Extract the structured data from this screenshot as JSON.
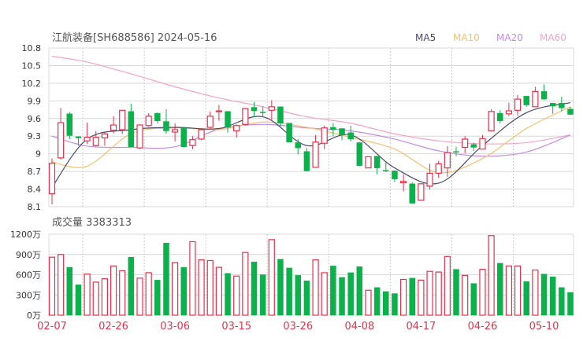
{
  "header": {
    "title": "江航装备[SH688586] 2024-05-16"
  },
  "legend": [
    {
      "label": "MA5",
      "color": "#4b4a6b"
    },
    {
      "label": "MA10",
      "color": "#f7c06a"
    },
    {
      "label": "MA20",
      "color": "#c38ce6"
    },
    {
      "label": "MA60",
      "color": "#f6a3c9"
    }
  ],
  "volume_header": {
    "label": "成交量 3383313"
  },
  "colors": {
    "up": "#e8304a",
    "down": "#0cb14b",
    "grid": "#d8d8d8",
    "axis_text": "#333333",
    "date_text": "#e8304a"
  },
  "chart_data": [
    {
      "type": "candlestick",
      "title": "江航装备[SH688586] 2024-05-16",
      "ylim": [
        8.1,
        10.8
      ],
      "yticks": [
        "10.8",
        "10.5",
        "10.2",
        "9.9",
        "9.6",
        "9.3",
        "9",
        "8.7",
        "8.4",
        "8.1"
      ],
      "open": [
        8.32,
        8.93,
        9.68,
        9.29,
        9.22,
        9.14,
        9.27,
        9.4,
        9.41,
        9.72,
        9.1,
        9.48,
        9.69,
        9.55,
        9.37,
        9.44,
        9.14,
        9.25,
        9.45,
        9.72,
        9.72,
        9.39,
        9.5,
        9.79,
        9.71,
        9.74,
        9.8,
        9.52,
        9.19,
        9.04,
        8.77,
        9.18,
        9.45,
        9.43,
        9.36,
        9.19,
        8.76,
        8.96,
        8.72,
        8.71,
        8.51,
        8.49,
        8.21,
        8.45,
        8.67,
        8.76,
        9.04,
        9.11,
        9.16,
        9.08,
        9.39,
        9.69,
        9.68,
        9.74,
        9.98,
        9.8,
        10.06,
        9.86,
        9.86,
        9.76
      ],
      "high": [
        8.92,
        9.78,
        9.71,
        9.3,
        9.53,
        9.39,
        9.36,
        9.64,
        9.74,
        9.85,
        9.5,
        9.69,
        9.7,
        9.76,
        9.52,
        9.45,
        9.3,
        9.42,
        9.72,
        9.83,
        9.73,
        9.5,
        9.78,
        9.88,
        9.81,
        9.91,
        9.8,
        9.52,
        9.25,
        9.1,
        9.32,
        9.48,
        9.52,
        9.43,
        9.48,
        9.2,
        8.95,
        8.96,
        8.85,
        8.71,
        8.65,
        8.52,
        8.49,
        8.83,
        8.88,
        9.13,
        9.12,
        9.3,
        9.19,
        9.32,
        9.76,
        9.74,
        9.87,
        10.0,
        9.98,
        10.14,
        10.18,
        9.86,
        9.97,
        9.8
      ],
      "low": [
        8.14,
        8.9,
        9.25,
        9.14,
        9.17,
        9.12,
        9.14,
        9.35,
        9.34,
        9.12,
        9.08,
        9.46,
        9.52,
        9.34,
        9.21,
        9.11,
        9.08,
        9.23,
        9.42,
        9.56,
        9.36,
        9.28,
        9.48,
        9.63,
        9.63,
        9.56,
        9.45,
        9.19,
        8.99,
        8.7,
        8.77,
        9.08,
        9.3,
        9.23,
        9.21,
        8.79,
        8.76,
        8.65,
        8.69,
        8.52,
        8.36,
        8.15,
        8.21,
        8.39,
        8.59,
        8.61,
        8.96,
        9.01,
        9.05,
        9.08,
        9.39,
        9.52,
        9.64,
        9.65,
        9.8,
        9.8,
        9.92,
        9.68,
        9.72,
        9.66
      ],
      "close": [
        8.84,
        9.53,
        9.31,
        9.27,
        9.28,
        9.28,
        9.34,
        9.49,
        9.74,
        9.12,
        9.49,
        9.64,
        9.56,
        9.39,
        9.41,
        9.12,
        9.24,
        9.41,
        9.64,
        9.73,
        9.45,
        9.48,
        9.77,
        9.73,
        9.7,
        9.8,
        9.52,
        9.2,
        9.1,
        8.71,
        9.2,
        9.44,
        9.41,
        9.32,
        9.25,
        8.8,
        8.95,
        8.76,
        8.71,
        8.57,
        8.53,
        8.16,
        8.49,
        8.67,
        8.83,
        9.02,
        9.03,
        9.25,
        9.11,
        9.26,
        9.72,
        9.56,
        9.73,
        9.93,
        9.83,
        10.06,
        9.93,
        9.81,
        9.78,
        9.67
      ],
      "moving_averages": {
        "bar_index": [
          0,
          4,
          9,
          14,
          19,
          24,
          29,
          34,
          39,
          44,
          49,
          54,
          59
        ],
        "MA5": [
          8.43,
          9.25,
          9.41,
          9.45,
          9.43,
          9.63,
          9.14,
          9.32,
          8.76,
          8.5,
          9.14,
          9.7,
          9.87
        ],
        "MA10": [
          8.86,
          8.79,
          9.34,
          9.44,
          9.41,
          9.54,
          9.45,
          9.28,
          9.08,
          8.68,
          8.92,
          9.43,
          9.8
        ],
        "MA20": [
          9.3,
          9.13,
          9.11,
          9.12,
          9.42,
          9.5,
          9.44,
          9.39,
          9.25,
          9.05,
          8.96,
          9.03,
          9.32
        ],
        "MA60": [
          10.66,
          10.56,
          10.36,
          10.14,
          9.95,
          9.8,
          9.63,
          9.52,
          9.34,
          9.22,
          9.17,
          9.19,
          9.32
        ]
      }
    },
    {
      "type": "bar",
      "title": "成交量 3383313",
      "ylim": [
        0,
        1200
      ],
      "unit": "万",
      "yticks": [
        "1200万",
        "900万",
        "600万",
        "300万",
        "0万"
      ],
      "values": [
        860,
        900,
        710,
        450,
        610,
        490,
        540,
        730,
        660,
        860,
        550,
        630,
        520,
        1070,
        780,
        710,
        1090,
        820,
        810,
        710,
        620,
        580,
        930,
        790,
        600,
        1120,
        830,
        700,
        590,
        510,
        820,
        630,
        730,
        560,
        630,
        720,
        370,
        410,
        350,
        320,
        530,
        550,
        520,
        650,
        640,
        870,
        680,
        590,
        470,
        680,
        1180,
        770,
        730,
        730,
        500,
        670,
        610,
        570,
        410,
        338
      ],
      "x_labels": [
        {
          "bar": 0,
          "label": "02-07"
        },
        {
          "bar": 7,
          "label": "02-26"
        },
        {
          "bar": 14,
          "label": "03-06"
        },
        {
          "bar": 21,
          "label": "03-15"
        },
        {
          "bar": 28,
          "label": "03-26"
        },
        {
          "bar": 35,
          "label": "04-08"
        },
        {
          "bar": 42,
          "label": "04-17"
        },
        {
          "bar": 49,
          "label": "04-26"
        },
        {
          "bar": 56,
          "label": "05-10"
        }
      ]
    }
  ]
}
